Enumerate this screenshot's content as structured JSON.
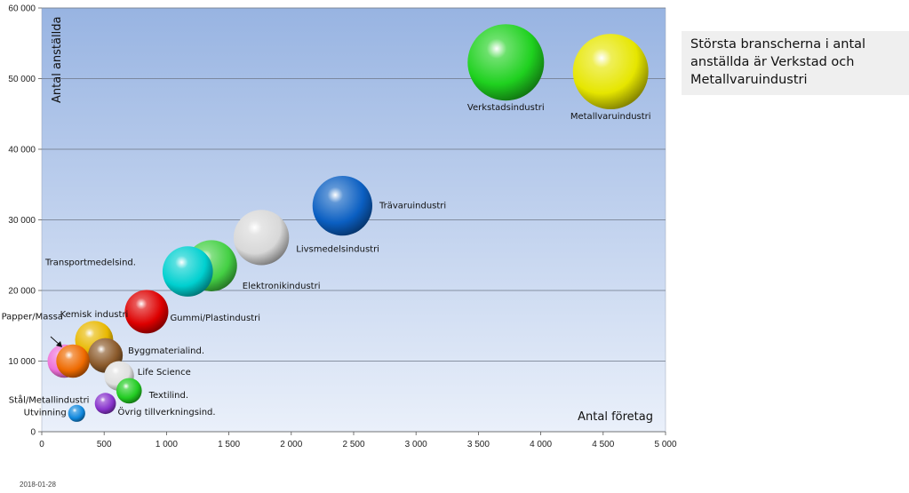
{
  "callout": {
    "text": "Största branscherna  i antal anställda är Verkstad och Metallvaruindustri"
  },
  "footer": {
    "date": "2018-01-28"
  },
  "chart_data": {
    "type": "bubble",
    "title": "",
    "xlabel": "Antal företag",
    "ylabel": "Antal anställda",
    "xlim": [
      0,
      5000
    ],
    "ylim": [
      0,
      60000
    ],
    "x_ticks": [
      0,
      500,
      1000,
      1500,
      2000,
      2500,
      3000,
      3500,
      4000,
      4500,
      5000
    ],
    "x_tick_labels": [
      "0",
      "500",
      "1 000",
      "1 500",
      "2 000",
      "2 500",
      "3 000",
      "3 500",
      "4 000",
      "4 500",
      "5 000"
    ],
    "y_ticks": [
      0,
      10000,
      20000,
      30000,
      40000,
      50000,
      60000
    ],
    "y_tick_labels": [
      "0",
      "10 000",
      "20 000",
      "30 000",
      "40 000",
      "50 000",
      "60 000"
    ],
    "grid": "horizontal",
    "legend": "none",
    "series": [
      {
        "label": "Verkstadsindustri",
        "x": 3720,
        "y": 52300,
        "size": 52300,
        "color": "#1fd11f"
      },
      {
        "label": "Metallvaruindustri",
        "x": 4560,
        "y": 51000,
        "size": 51000,
        "color": "#e6e600"
      },
      {
        "label": "Trävaruindustri",
        "x": 2410,
        "y": 32000,
        "size": 32000,
        "color": "#0b5fc2"
      },
      {
        "label": "Livsmedelsindustri",
        "x": 1760,
        "y": 27500,
        "size": 27500,
        "color": "#d8d8d8"
      },
      {
        "label": "Elektronikindustri",
        "x": 1360,
        "y": 23500,
        "size": 23500,
        "color": "#44d044"
      },
      {
        "label": "Transportmedelsind.",
        "x": 1170,
        "y": 22700,
        "size": 22700,
        "color": "#00d0d0"
      },
      {
        "label": "Gummi/Plastindustri",
        "x": 840,
        "y": 17000,
        "size": 17000,
        "color": "#dd0000"
      },
      {
        "label": "Kemisk industri",
        "x": 420,
        "y": 13000,
        "size": 13000,
        "color": "#e8b800"
      },
      {
        "label": "Byggmaterialind.",
        "x": 510,
        "y": 10800,
        "size": 10800,
        "color": "#8b5a2b"
      },
      {
        "label": "Papper/Massa",
        "x": 180,
        "y": 10000,
        "size": 10000,
        "color": "#ee70d8"
      },
      {
        "label": "Stål/Metallindustri",
        "x": 250,
        "y": 10000,
        "size": 10000,
        "color": "#ee6a00"
      },
      {
        "label": "Life Science",
        "x": 620,
        "y": 7900,
        "size": 7900,
        "color": "#e0e0e0"
      },
      {
        "label": "Textilind.",
        "x": 700,
        "y": 5800,
        "size": 5800,
        "color": "#22cc22"
      },
      {
        "label": "Övrig tillverkningsind.",
        "x": 510,
        "y": 4000,
        "size": 4000,
        "color": "#8833cc"
      },
      {
        "label": "Utvinning",
        "x": 280,
        "y": 2600,
        "size": 2600,
        "color": "#1188dd"
      }
    ]
  }
}
